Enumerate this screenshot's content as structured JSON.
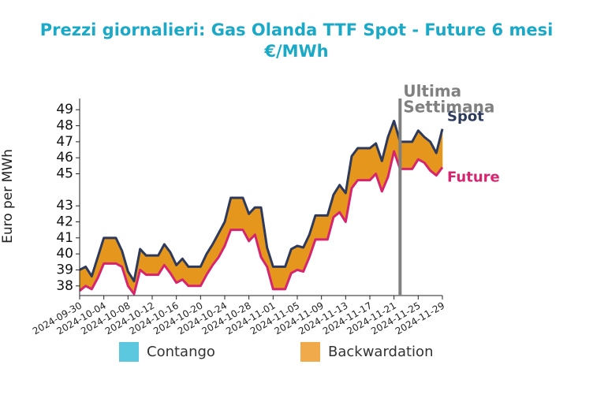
{
  "chart_data": {
    "type": "line",
    "title": "Prezzi giornalieri: Gas Olanda TTF Spot - Future 6 mesi",
    "subtitle": "€/MWh",
    "y_label": "Euro per MWh",
    "x": [
      "2024-09-30",
      "2024-10-01",
      "2024-10-02",
      "2024-10-03",
      "2024-10-04",
      "2024-10-05",
      "2024-10-06",
      "2024-10-07",
      "2024-10-08",
      "2024-10-09",
      "2024-10-10",
      "2024-10-11",
      "2024-10-12",
      "2024-10-13",
      "2024-10-14",
      "2024-10-15",
      "2024-10-16",
      "2024-10-17",
      "2024-10-18",
      "2024-10-19",
      "2024-10-20",
      "2024-10-21",
      "2024-10-22",
      "2024-10-23",
      "2024-10-24",
      "2024-10-25",
      "2024-10-26",
      "2024-10-27",
      "2024-10-28",
      "2024-10-29",
      "2024-10-30",
      "2024-10-31",
      "2024-11-01",
      "2024-11-02",
      "2024-11-03",
      "2024-11-04",
      "2024-11-05",
      "2024-11-06",
      "2024-11-07",
      "2024-11-08",
      "2024-11-09",
      "2024-11-10",
      "2024-11-11",
      "2024-11-12",
      "2024-11-13",
      "2024-11-14",
      "2024-11-15",
      "2024-11-16",
      "2024-11-17",
      "2024-11-18",
      "2024-11-19",
      "2024-11-20",
      "2024-11-21",
      "2024-11-22",
      "2024-11-23",
      "2024-11-24",
      "2024-11-25",
      "2024-11-26",
      "2024-11-27",
      "2024-11-28",
      "2024-11-29"
    ],
    "series": [
      {
        "name": "Spot",
        "color": "#2d3a5c",
        "values": [
          39.0,
          39.2,
          38.6,
          39.8,
          41.0,
          41.0,
          41.0,
          40.2,
          38.9,
          38.3,
          40.3,
          39.9,
          39.9,
          39.9,
          40.6,
          40.1,
          39.3,
          39.7,
          39.2,
          39.2,
          39.2,
          40.0,
          40.6,
          41.3,
          42.0,
          43.5,
          43.5,
          43.5,
          42.5,
          42.9,
          42.9,
          40.4,
          39.2,
          39.2,
          39.2,
          40.3,
          40.5,
          40.4,
          41.2,
          42.4,
          42.4,
          42.4,
          43.7,
          44.3,
          43.8,
          46.1,
          46.6,
          46.6,
          46.6,
          46.9,
          45.8,
          47.3,
          48.3,
          47.0,
          47.0,
          47.0,
          47.7,
          47.3,
          47.0,
          46.3,
          47.8
        ]
      },
      {
        "name": "Future",
        "color": "#d6246e",
        "values": [
          37.7,
          38.0,
          37.8,
          38.5,
          39.4,
          39.4,
          39.4,
          39.2,
          38.0,
          37.5,
          39.0,
          38.7,
          38.7,
          38.7,
          39.3,
          38.8,
          38.2,
          38.4,
          38.0,
          38.0,
          38.0,
          38.7,
          39.3,
          39.8,
          40.5,
          41.5,
          41.5,
          41.5,
          40.8,
          41.2,
          39.8,
          39.2,
          37.8,
          37.8,
          37.8,
          38.8,
          39.0,
          38.9,
          39.8,
          40.9,
          40.9,
          40.9,
          42.3,
          42.6,
          42.0,
          44.1,
          44.6,
          44.6,
          44.6,
          45.0,
          43.9,
          44.8,
          46.4,
          45.3,
          45.3,
          45.3,
          45.9,
          45.7,
          45.2,
          44.9,
          45.4
        ]
      }
    ],
    "fill_legend": [
      {
        "name": "Contango",
        "color": "#5bc8e0"
      },
      {
        "name": "Backwardation",
        "color": "#f0a94b"
      }
    ],
    "fill_colors": {
      "contango": "#5bc8e0",
      "backwardation": "#e5961d"
    },
    "vline": {
      "x": "2024-11-22",
      "color": "#808080",
      "label": [
        "Ultima",
        "Settimana"
      ]
    },
    "xlim": [
      "2024-09-30",
      "2024-11-29"
    ],
    "xticks": [
      "2024-09-30",
      "2024-10-04",
      "2024-10-08",
      "2024-10-12",
      "2024-10-16",
      "2024-10-20",
      "2024-10-24",
      "2024-10-28",
      "2024-11-01",
      "2024-11-05",
      "2024-11-09",
      "2024-11-13",
      "2024-11-17",
      "2024-11-21",
      "2024-11-25",
      "2024-11-29"
    ],
    "ylim": [
      37.4,
      49.7
    ],
    "yticks": [
      38,
      39,
      40,
      41,
      42,
      43,
      45,
      46,
      47,
      48,
      49
    ]
  }
}
